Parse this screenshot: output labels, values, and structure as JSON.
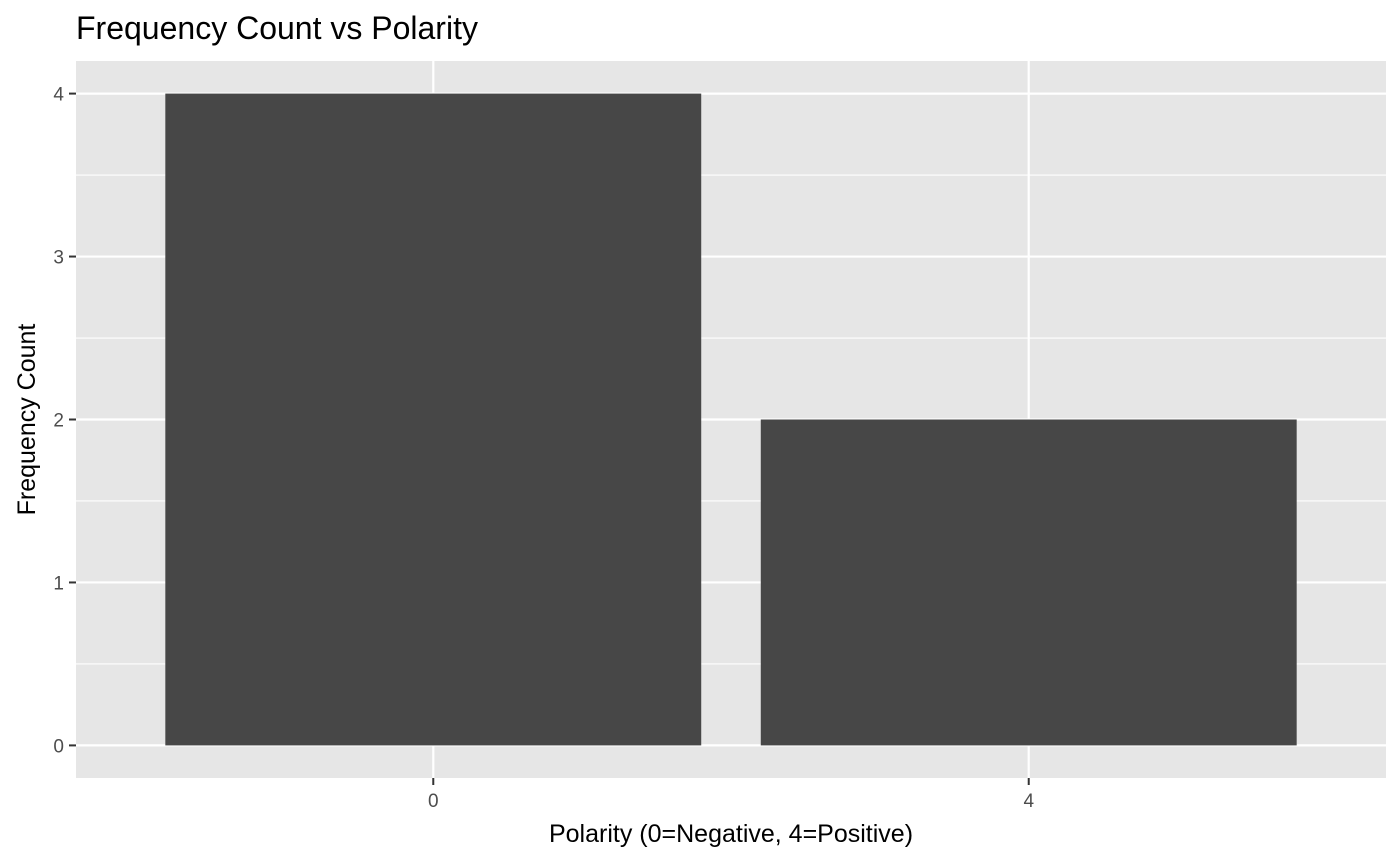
{
  "chart_data": {
    "type": "bar",
    "title": "Frequency Count vs Polarity",
    "xlabel": "Polarity (0=Negative, 4=Positive)",
    "ylabel": "Frequency Count",
    "categories": [
      "0",
      "4"
    ],
    "values": [
      4,
      2
    ],
    "ylim": [
      -0.2,
      4.2
    ],
    "yticks": [
      "0",
      "1",
      "2",
      "3",
      "4"
    ],
    "grid": true,
    "legend": "none",
    "colors": {
      "bar": "#474747",
      "panel": "#e6e6e6",
      "grid": "#ffffff",
      "tick_text": "#4d4d4d"
    }
  }
}
